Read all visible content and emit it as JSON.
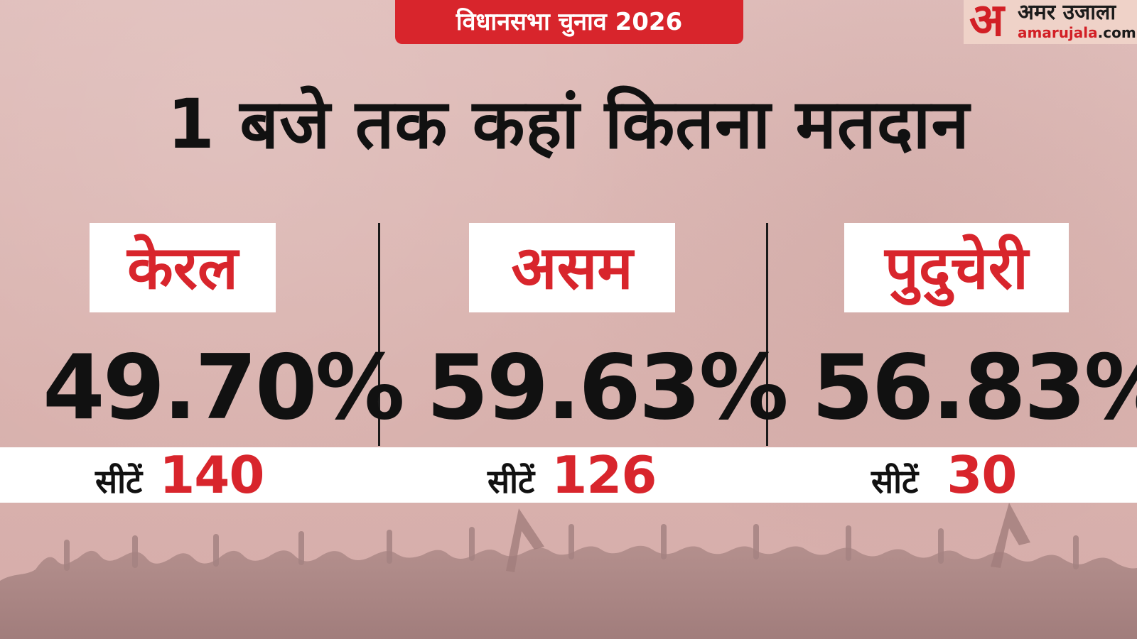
{
  "tag": "विधानसभा चुनाव 2026",
  "logo": {
    "glyph": "अ",
    "name": "अमर उजाला",
    "domain_main": "amarujala",
    "domain_tld": ".com"
  },
  "headline": "1 बजे तक कहां कितना मतदान",
  "states": [
    {
      "name": "केरल",
      "percent": "49.70%",
      "seats_label": "सीटें",
      "seats": "140"
    },
    {
      "name": "असम",
      "percent": "59.63%",
      "seats_label": "सीटें",
      "seats": "126"
    },
    {
      "name": "पुदुचेरी",
      "percent": "56.83%",
      "seats_label": "सीटें",
      "seats": "30"
    }
  ],
  "colors": {
    "accent_red": "#d8252c",
    "background": "#dcb7b4",
    "text": "#111111"
  }
}
